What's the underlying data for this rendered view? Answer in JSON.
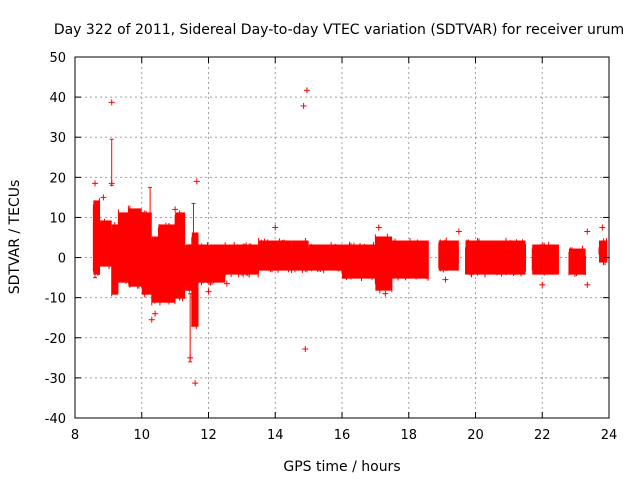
{
  "chart_data": {
    "type": "scatter",
    "title": "Day 322 of 2011, Sidereal Day-to-day VTEC variation (SDTVAR) for receiver urum",
    "xlabel": "GPS time / hours",
    "ylabel": "SDTVAR / TECUs",
    "xlim": [
      8,
      24
    ],
    "ylim": [
      -40,
      50
    ],
    "x_ticks": [
      8,
      10,
      12,
      14,
      16,
      18,
      20,
      22,
      24
    ],
    "y_ticks": [
      -40,
      -30,
      -20,
      -10,
      0,
      10,
      20,
      30,
      40,
      50
    ],
    "x_tick_labels": [
      "8",
      "10",
      "12",
      "14",
      "16",
      "18",
      "20",
      "22",
      "24"
    ],
    "y_tick_labels": [
      "-40",
      "-30",
      "-20",
      "-10",
      "0",
      "10",
      "20",
      "30",
      "40",
      "50"
    ],
    "grid": true,
    "marker": "+",
    "series_color": "#ff0000",
    "series": [
      {
        "name": "SDTVAR",
        "bands": [
          {
            "x0": 8.55,
            "x1": 8.75,
            "lo": -5,
            "hi": 15
          },
          {
            "x0": 8.75,
            "x1": 9.1,
            "lo": -3,
            "hi": 10
          },
          {
            "x0": 9.1,
            "x1": 9.3,
            "lo": -10,
            "hi": 9
          },
          {
            "x0": 9.3,
            "x1": 9.6,
            "lo": -7,
            "hi": 12
          },
          {
            "x0": 9.6,
            "x1": 10.0,
            "lo": -8,
            "hi": 13
          },
          {
            "x0": 10.0,
            "x1": 10.3,
            "lo": -10,
            "hi": 12
          },
          {
            "x0": 10.3,
            "x1": 10.5,
            "lo": -12,
            "hi": 6
          },
          {
            "x0": 10.5,
            "x1": 11.0,
            "lo": -12,
            "hi": 9
          },
          {
            "x0": 11.0,
            "x1": 11.3,
            "lo": -11,
            "hi": 12
          },
          {
            "x0": 11.3,
            "x1": 11.5,
            "lo": -9,
            "hi": 4
          },
          {
            "x0": 11.5,
            "x1": 11.7,
            "lo": -18,
            "hi": 7
          },
          {
            "x0": 11.7,
            "x1": 12.5,
            "lo": -7,
            "hi": 4
          },
          {
            "x0": 12.5,
            "x1": 13.5,
            "lo": -5,
            "hi": 4
          },
          {
            "x0": 13.5,
            "x1": 14.5,
            "lo": -4,
            "hi": 5
          },
          {
            "x0": 14.5,
            "x1": 15.0,
            "lo": -4,
            "hi": 5
          },
          {
            "x0": 15.0,
            "x1": 16.0,
            "lo": -4,
            "hi": 4
          },
          {
            "x0": 16.0,
            "x1": 17.0,
            "lo": -6,
            "hi": 4
          },
          {
            "x0": 17.0,
            "x1": 17.5,
            "lo": -9,
            "hi": 6
          },
          {
            "x0": 17.5,
            "x1": 18.6,
            "lo": -6,
            "hi": 5
          },
          {
            "x0": 18.9,
            "x1": 19.5,
            "lo": -4,
            "hi": 5
          },
          {
            "x0": 19.7,
            "x1": 21.5,
            "lo": -5,
            "hi": 5
          },
          {
            "x0": 21.7,
            "x1": 22.5,
            "lo": -5,
            "hi": 4
          },
          {
            "x0": 22.8,
            "x1": 23.3,
            "lo": -5,
            "hi": 3
          },
          {
            "x0": 23.7,
            "x1": 23.95,
            "lo": -2,
            "hi": 5
          }
        ],
        "points": [
          {
            "x": 8.6,
            "y": 18.5
          },
          {
            "x": 9.1,
            "y": 38.7
          },
          {
            "x": 9.1,
            "y": 18.5
          },
          {
            "x": 14.85,
            "y": 37.8
          },
          {
            "x": 14.95,
            "y": 41.7
          },
          {
            "x": 14.9,
            "y": -22.8
          },
          {
            "x": 11.65,
            "y": 19
          },
          {
            "x": 11.6,
            "y": -31.3
          },
          {
            "x": 11.45,
            "y": -25
          },
          {
            "x": 10.3,
            "y": -15.5
          },
          {
            "x": 10.4,
            "y": -14
          },
          {
            "x": 12.55,
            "y": -6.5
          },
          {
            "x": 12.0,
            "y": -8.5
          },
          {
            "x": 14.0,
            "y": 7.5
          },
          {
            "x": 17.1,
            "y": 7.5
          },
          {
            "x": 17.3,
            "y": -9
          },
          {
            "x": 19.5,
            "y": 6.5
          },
          {
            "x": 23.35,
            "y": 6.5
          },
          {
            "x": 23.35,
            "y": -6.8
          },
          {
            "x": 23.8,
            "y": 7.5
          },
          {
            "x": 22.0,
            "y": -6.8
          },
          {
            "x": 19.1,
            "y": -5.5
          },
          {
            "x": 8.85,
            "y": 15
          },
          {
            "x": 8.65,
            "y": 10
          },
          {
            "x": 11.0,
            "y": 12
          }
        ],
        "error_bars": [
          {
            "x": 9.1,
            "lo": 18,
            "hi": 29.5
          },
          {
            "x": 8.6,
            "lo": -5,
            "hi": 9
          },
          {
            "x": 10.25,
            "lo": 3,
            "hi": 17.5
          },
          {
            "x": 11.55,
            "lo": -5,
            "hi": 13.5
          },
          {
            "x": 11.45,
            "lo": -26,
            "hi": -9
          }
        ]
      }
    ]
  }
}
